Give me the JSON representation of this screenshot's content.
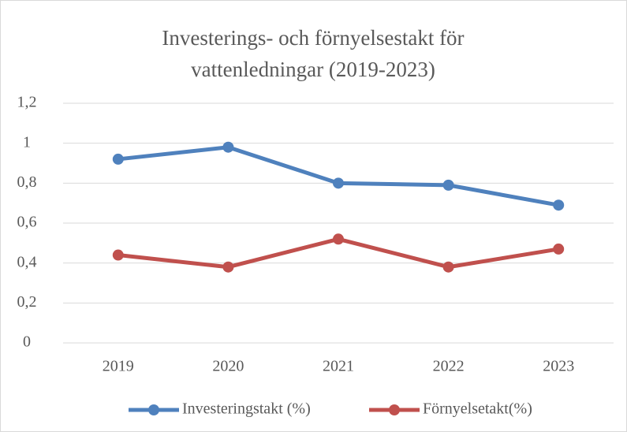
{
  "chart_data": {
    "type": "line",
    "title": "Investerings- och förnyelsestakt för vattenledningar (2019-2023)",
    "categories": [
      "2019",
      "2020",
      "2021",
      "2022",
      "2023"
    ],
    "series": [
      {
        "name": "Investeringstakt (%)",
        "color": "#4f81bd",
        "values": [
          0.92,
          0.98,
          0.8,
          0.79,
          0.69
        ]
      },
      {
        "name": "Förnyelsetakt(%)",
        "color": "#c0504d",
        "values": [
          0.44,
          0.38,
          0.52,
          0.38,
          0.47
        ]
      }
    ],
    "ylim": [
      0,
      1.2
    ],
    "yticks": [
      0,
      {
        "value": 0.2,
        "label": "0,2"
      },
      {
        "value": 0.4,
        "label": "0,4"
      },
      {
        "value": 0.6,
        "label": "0,6"
      },
      {
        "value": 0.8,
        "label": "0,8"
      },
      1,
      {
        "value": 1.2,
        "label": "1,2"
      }
    ],
    "grid": true,
    "legend": "bottom"
  }
}
